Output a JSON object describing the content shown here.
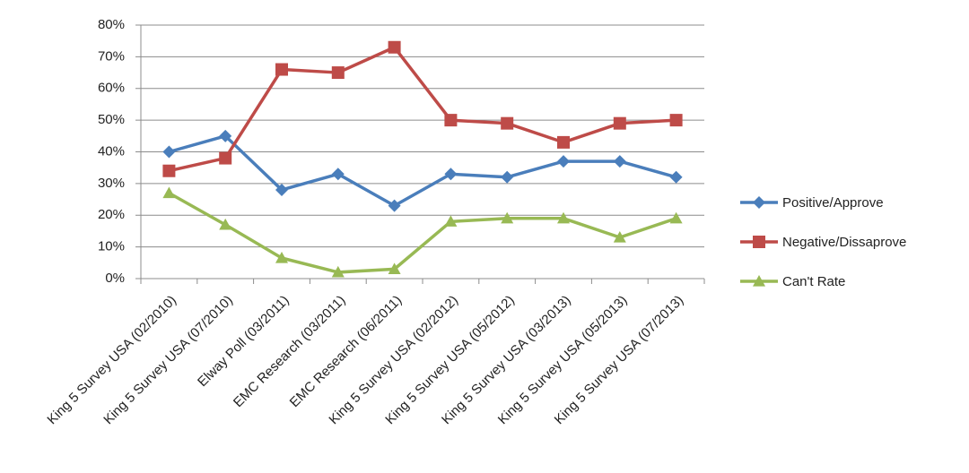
{
  "chart_data": {
    "type": "line",
    "categories": [
      "King 5 Survey USA (02/2010)",
      "King 5 Survey USA (07/2010)",
      "Elway Poll (03/2011)",
      "EMC Research (03/2011)",
      "EMC Research (06/2011)",
      "King 5 Survey USA (02/2012)",
      "King 5 Survey USA (05/2012)",
      "King 5 Survey USA (03/2013)",
      "King 5 Survey USA (05/2013)",
      "King 5 Survey USA (07/2013)"
    ],
    "series": [
      {
        "name": "Positive/Approve",
        "color": "#4a7ebb",
        "marker": "diamond",
        "values": [
          40,
          45,
          28,
          33,
          23,
          33,
          32,
          37,
          37,
          32
        ]
      },
      {
        "name": "Negative/Dissaprove",
        "color": "#be4b48",
        "marker": "square",
        "values": [
          34,
          38,
          66,
          65,
          73,
          50,
          49,
          43,
          49,
          50
        ]
      },
      {
        "name": "Can't Rate",
        "color": "#98b954",
        "marker": "triangle",
        "values": [
          27,
          17,
          6.5,
          2,
          3,
          18,
          19,
          19,
          13,
          19
        ]
      }
    ],
    "ylim": [
      0,
      80
    ],
    "yticks": [
      {
        "value": 0,
        "label": "0%"
      },
      {
        "value": 10,
        "label": "10%"
      },
      {
        "value": 20,
        "label": "20%"
      },
      {
        "value": 30,
        "label": "30%"
      },
      {
        "value": 40,
        "label": "40%"
      },
      {
        "value": 50,
        "label": "50%"
      },
      {
        "value": 60,
        "label": "60%"
      },
      {
        "value": 70,
        "label": "70%"
      },
      {
        "value": 80,
        "label": "80%"
      }
    ],
    "grid": true,
    "legend": "right"
  }
}
